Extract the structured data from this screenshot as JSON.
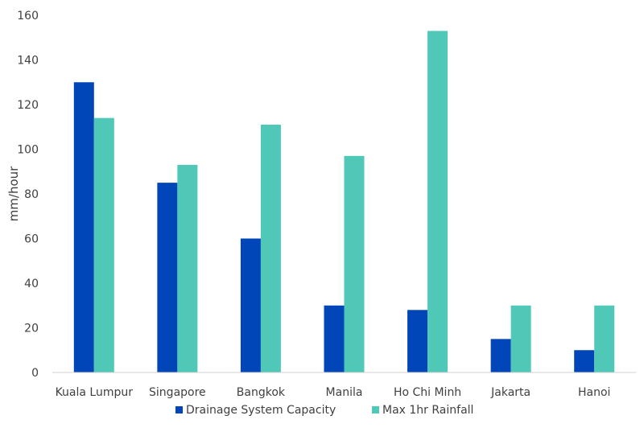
{
  "chart_data": {
    "type": "bar",
    "categories": [
      "Kuala Lumpur",
      "Singapore",
      "Bangkok",
      "Manila",
      "Ho Chi Minh",
      "Jakarta",
      "Hanoi"
    ],
    "series": [
      {
        "name": "Drainage System Capacity",
        "color": "#0046B8",
        "values": [
          130,
          85,
          60,
          30,
          28,
          15,
          10
        ]
      },
      {
        "name": "Max 1hr Rainfall",
        "color": "#50C8B8",
        "values": [
          114,
          93,
          111,
          97,
          153,
          30,
          30
        ]
      }
    ],
    "title": "",
    "xlabel": "",
    "ylabel": "mm/hour",
    "ylim": [
      0,
      160
    ],
    "yticks": [
      "0",
      "20",
      "40",
      "60",
      "80",
      "100",
      "120",
      "140",
      "160"
    ],
    "grid": false,
    "legend": "bottom"
  }
}
